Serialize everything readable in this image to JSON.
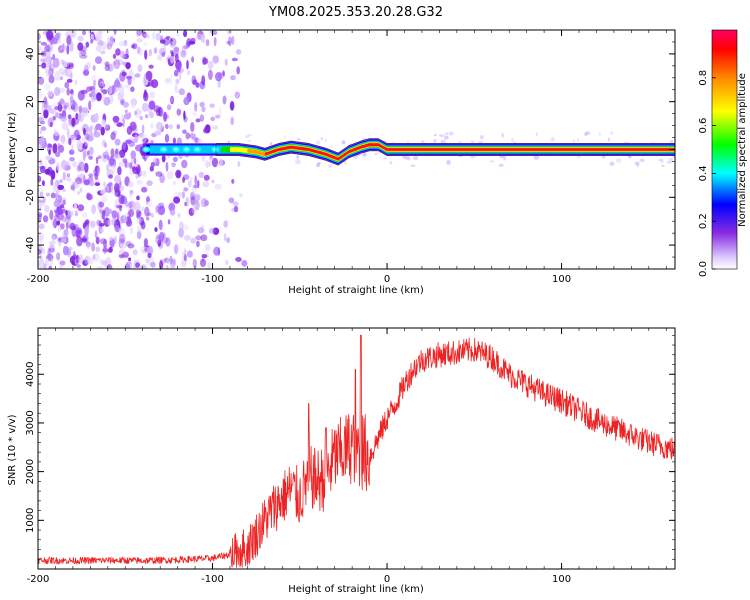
{
  "figure_title": "YM08.2025.353.20.28.G32",
  "colors": {
    "snr_line": "#ee2222",
    "frame": "#000000",
    "speckle": "#8a2be2",
    "background": "#ffffff"
  },
  "chart_data": [
    {
      "type": "heatmap",
      "name": "spectrogram",
      "xlabel": "Height of straight line (km)",
      "ylabel": "Frequency (Hz)",
      "xlim": [
        -200,
        165
      ],
      "ylim": [
        -50,
        50
      ],
      "x_ticks": [
        -200,
        -100,
        0,
        100
      ],
      "y_ticks": [
        -40,
        -20,
        0,
        20,
        40
      ],
      "signal_start_km": -138,
      "noise_extent_km": [
        -200,
        -85
      ],
      "centerline": [
        {
          "x": -138,
          "y": 0
        },
        {
          "x": -100,
          "y": 0
        },
        {
          "x": -85,
          "y": 0
        },
        {
          "x": -75,
          "y": -1
        },
        {
          "x": -70,
          "y": -2
        },
        {
          "x": -62,
          "y": 0
        },
        {
          "x": -55,
          "y": 1
        },
        {
          "x": -45,
          "y": 0
        },
        {
          "x": -35,
          "y": -2
        },
        {
          "x": -28,
          "y": -4
        },
        {
          "x": -22,
          "y": -1
        },
        {
          "x": -15,
          "y": 1
        },
        {
          "x": -10,
          "y": 2
        },
        {
          "x": -5,
          "y": 2
        },
        {
          "x": 0,
          "y": 0
        },
        {
          "x": 30,
          "y": 0
        },
        {
          "x": 50,
          "y": 0
        },
        {
          "x": 165,
          "y": 0
        }
      ]
    },
    {
      "type": "colorbar",
      "name": "amplitude-colorbar",
      "label": "Normalized spectral amplitude",
      "range": [
        0,
        1
      ],
      "ticks": [
        "0.0",
        "0.2",
        "0.4",
        "0.6",
        "0.8"
      ]
    },
    {
      "type": "line",
      "name": "snr",
      "xlabel": "Height of straight line (km)",
      "ylabel": "SNR (10 * v/v)",
      "xlim": [
        -200,
        165
      ],
      "ylim": [
        0,
        4950
      ],
      "x_ticks": [
        -200,
        -100,
        0,
        100
      ],
      "y_ticks": [
        1000,
        2000,
        3000,
        4000
      ],
      "series": [
        {
          "name": "SNR",
          "x": [
            -200,
            -180,
            -160,
            -140,
            -120,
            -100,
            -90,
            -80,
            -75,
            -70,
            -65,
            -60,
            -55,
            -50,
            -45,
            -40,
            -35,
            -30,
            -25,
            -20,
            -15,
            -10,
            -5,
            0,
            5,
            10,
            15,
            20,
            30,
            40,
            50,
            60,
            70,
            80,
            90,
            100,
            110,
            120,
            130,
            140,
            150,
            165
          ],
          "y": [
            180,
            170,
            180,
            170,
            190,
            220,
            300,
            450,
            700,
            1000,
            1250,
            1450,
            1650,
            1450,
            1900,
            1800,
            1900,
            2300,
            2400,
            2550,
            2450,
            2300,
            2700,
            3100,
            3400,
            3800,
            4100,
            4300,
            4400,
            4450,
            4500,
            4350,
            4000,
            3800,
            3600,
            3450,
            3250,
            3050,
            2900,
            2750,
            2600,
            2450
          ]
        }
      ],
      "spikes": [
        {
          "x": -45,
          "y": 3400
        },
        {
          "x": -35,
          "y": 2900
        },
        {
          "x": -15,
          "y": 4800
        },
        {
          "x": -18,
          "y": 4100
        }
      ]
    }
  ]
}
